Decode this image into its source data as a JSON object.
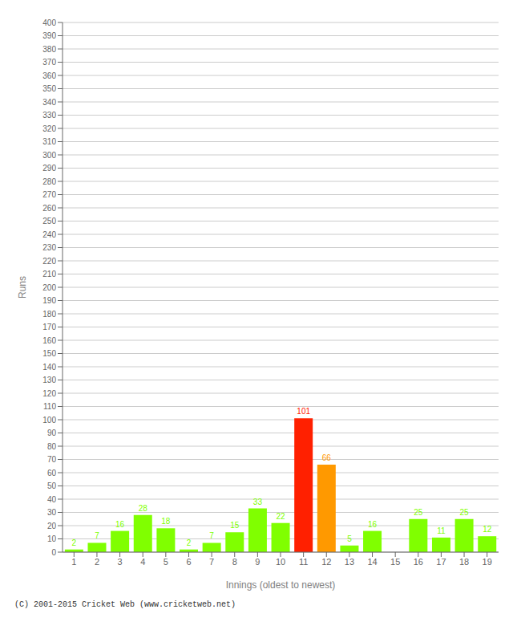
{
  "chart_data": {
    "type": "bar",
    "xlabel": "Innings (oldest to newest)",
    "ylabel": "Runs",
    "categories": [
      1,
      2,
      3,
      4,
      5,
      6,
      7,
      8,
      9,
      10,
      11,
      12,
      13,
      14,
      15,
      16,
      17,
      18,
      19
    ],
    "values": [
      2,
      7,
      16,
      28,
      18,
      2,
      7,
      15,
      33,
      22,
      101,
      66,
      5,
      16,
      0,
      25,
      11,
      25,
      12
    ],
    "colors": [
      "#80ff00",
      "#80ff00",
      "#80ff00",
      "#80ff00",
      "#80ff00",
      "#80ff00",
      "#80ff00",
      "#80ff00",
      "#80ff00",
      "#80ff00",
      "#ff2000",
      "#ff9900",
      "#80ff00",
      "#80ff00",
      "#80ff00",
      "#80ff00",
      "#80ff00",
      "#80ff00",
      "#80ff00"
    ],
    "ylim": [
      0,
      400
    ],
    "yticks": [
      0,
      10,
      20,
      30,
      40,
      50,
      60,
      70,
      80,
      90,
      100,
      110,
      120,
      130,
      140,
      150,
      160,
      170,
      180,
      190,
      200,
      210,
      220,
      230,
      240,
      250,
      260,
      270,
      280,
      290,
      300,
      310,
      320,
      330,
      340,
      350,
      360,
      370,
      380,
      390,
      400
    ],
    "grid": true,
    "data_labels": true,
    "annotations": [
      "(C) 2001-2015 Cricket Web (www.cricketweb.net)"
    ]
  }
}
